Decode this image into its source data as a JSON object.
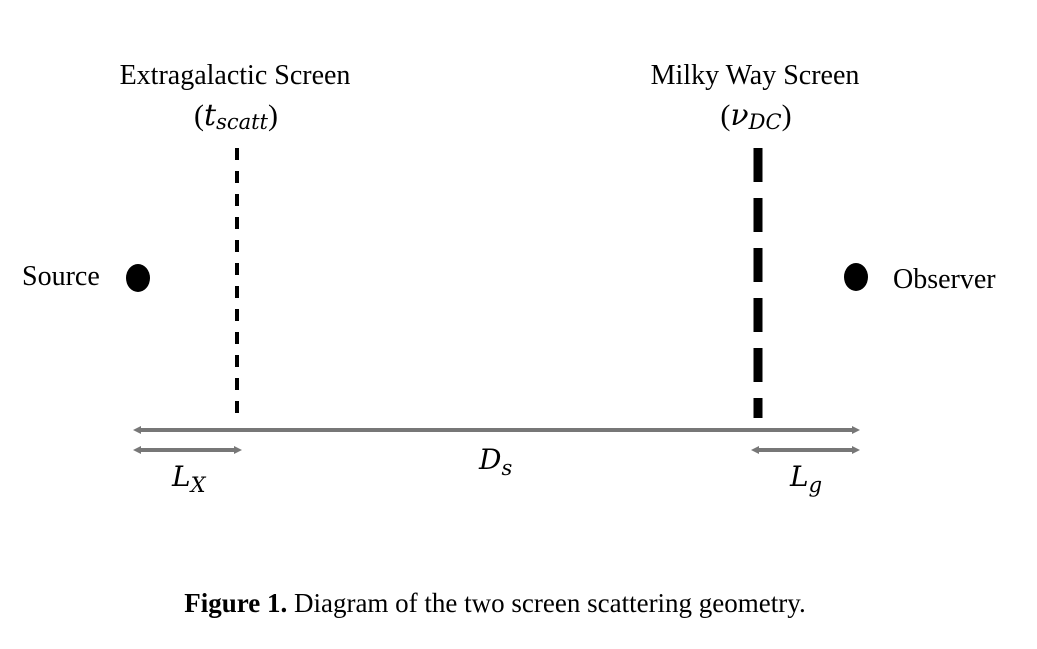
{
  "diagram": {
    "left_screen": {
      "title": "Extragalactic Screen",
      "param_open": "(",
      "param_symbol": "t",
      "param_sub": "scatt",
      "param_close": ")"
    },
    "right_screen": {
      "title": "Milky Way Screen",
      "param_open": "(",
      "param_symbol": "ν",
      "param_sub": "DC",
      "param_close": ")"
    },
    "source_label": "Source",
    "observer_label": "Observer",
    "distances": {
      "ds": {
        "symbol": "D",
        "sub": "s"
      },
      "lx": {
        "symbol": "L",
        "sub": "X"
      },
      "lg": {
        "symbol": "L",
        "sub": "g"
      }
    }
  },
  "caption": {
    "label": "Figure 1.",
    "text": " Diagram of the two screen scattering geometry."
  }
}
